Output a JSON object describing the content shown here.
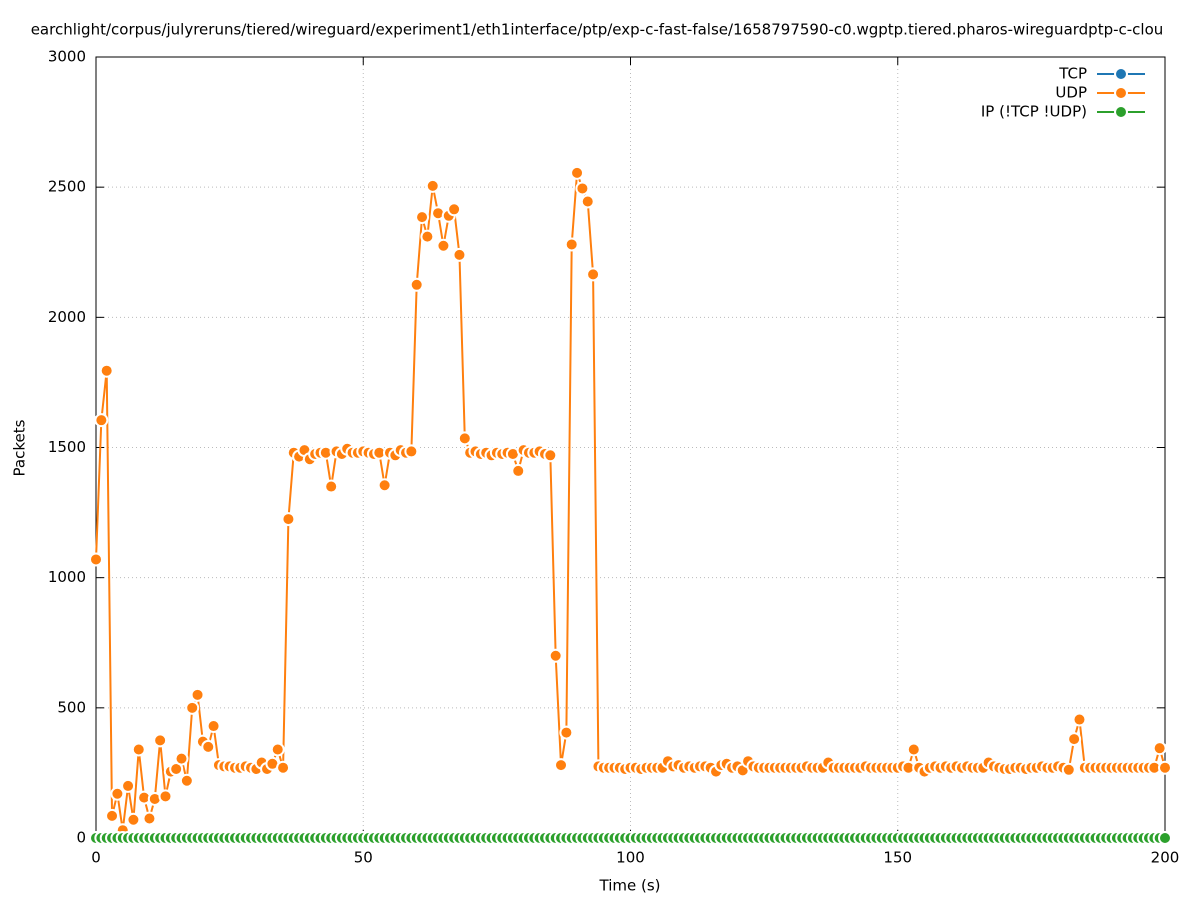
{
  "chart_data": {
    "type": "line",
    "title": "earchlight/corpus/julyreruns/tiered/wireguard/experiment1/eth1interface/ptp/exp-c-fast-false/1658797590-c0.wgptp.tiered.pharos-wireguardptp-c-clou",
    "xlabel": "Time (s)",
    "ylabel": "Packets",
    "x": [
      0,
      1,
      2,
      3,
      4,
      5,
      6,
      7,
      8,
      9,
      10,
      11,
      12,
      13,
      14,
      15,
      16,
      17,
      18,
      19,
      20,
      21,
      22,
      23,
      24,
      25,
      26,
      27,
      28,
      29,
      30,
      31,
      32,
      33,
      34,
      35,
      36,
      37,
      38,
      39,
      40,
      41,
      42,
      43,
      44,
      45,
      46,
      47,
      48,
      49,
      50,
      51,
      52,
      53,
      54,
      55,
      56,
      57,
      58,
      59,
      60,
      61,
      62,
      63,
      64,
      65,
      66,
      67,
      68,
      69,
      70,
      71,
      72,
      73,
      74,
      75,
      76,
      77,
      78,
      79,
      80,
      81,
      82,
      83,
      84,
      85,
      86,
      87,
      88,
      89,
      90,
      91,
      92,
      93,
      94,
      95,
      96,
      97,
      98,
      99,
      100,
      101,
      102,
      103,
      104,
      105,
      106,
      107,
      108,
      109,
      110,
      111,
      112,
      113,
      114,
      115,
      116,
      117,
      118,
      119,
      120,
      121,
      122,
      123,
      124,
      125,
      126,
      127,
      128,
      129,
      130,
      131,
      132,
      133,
      134,
      135,
      136,
      137,
      138,
      139,
      140,
      141,
      142,
      143,
      144,
      145,
      146,
      147,
      148,
      149,
      150,
      151,
      152,
      153,
      154,
      155,
      156,
      157,
      158,
      159,
      160,
      161,
      162,
      163,
      164,
      165,
      166,
      167,
      168,
      169,
      170,
      171,
      172,
      173,
      174,
      175,
      176,
      177,
      178,
      179,
      180,
      181,
      182,
      183,
      184,
      185,
      186,
      187,
      188,
      189,
      190,
      191,
      192,
      193,
      194,
      195,
      196,
      197,
      198,
      199,
      200
    ],
    "series": [
      {
        "name": "TCP",
        "color": "#1f77b4",
        "values": [
          0,
          0,
          0,
          0,
          0,
          0,
          0,
          0,
          0,
          0,
          0,
          0,
          0,
          0,
          0,
          0,
          0,
          0,
          0,
          0,
          0,
          0,
          0,
          0,
          0,
          0,
          0,
          0,
          0,
          0,
          0,
          0,
          0,
          0,
          0,
          0,
          0,
          0,
          0,
          0,
          0,
          0,
          0,
          0,
          0,
          0,
          0,
          0,
          0,
          0,
          0,
          0,
          0,
          0,
          0,
          0,
          0,
          0,
          0,
          0,
          0,
          0,
          0,
          0,
          0,
          0,
          0,
          0,
          0,
          0,
          0,
          0,
          0,
          0,
          0,
          0,
          0,
          0,
          0,
          0,
          0,
          0,
          0,
          0,
          0,
          0,
          0,
          0,
          0,
          0,
          0,
          0,
          0,
          0,
          0,
          0,
          0,
          0,
          0,
          0,
          0,
          0,
          0,
          0,
          0,
          0,
          0,
          0,
          0,
          0,
          0,
          0,
          0,
          0,
          0,
          0,
          0,
          0,
          0,
          0,
          0,
          0,
          0,
          0,
          0,
          0,
          0,
          0,
          0,
          0,
          0,
          0,
          0,
          0,
          0,
          0,
          0,
          0,
          0,
          0,
          0,
          0,
          0,
          0,
          0,
          0,
          0,
          0,
          0,
          0,
          0,
          0,
          0,
          0,
          0,
          0,
          0,
          0,
          0,
          0,
          0,
          0,
          0,
          0,
          0,
          0,
          0,
          0,
          0,
          0,
          0,
          0,
          0,
          0,
          0,
          0,
          0,
          0,
          0,
          0,
          0,
          0,
          0,
          0,
          0,
          0,
          0,
          0,
          0,
          0,
          0,
          0,
          0,
          0,
          0,
          0,
          0,
          0,
          0,
          0,
          0
        ]
      },
      {
        "name": "UDP",
        "color": "#ff7f0e",
        "values": [
          1070,
          1605,
          1795,
          85,
          170,
          30,
          200,
          70,
          340,
          155,
          75,
          150,
          375,
          160,
          255,
          265,
          305,
          220,
          500,
          550,
          370,
          350,
          430,
          280,
          275,
          275,
          270,
          270,
          275,
          270,
          265,
          290,
          265,
          285,
          340,
          270,
          1225,
          1480,
          1465,
          1490,
          1455,
          1475,
          1480,
          1480,
          1350,
          1485,
          1475,
          1495,
          1480,
          1480,
          1485,
          1480,
          1475,
          1480,
          1355,
          1480,
          1470,
          1490,
          1480,
          1485,
          2125,
          2385,
          2310,
          2505,
          2400,
          2275,
          2390,
          2415,
          2240,
          1535,
          1480,
          1485,
          1475,
          1480,
          1470,
          1480,
          1475,
          1480,
          1475,
          1410,
          1490,
          1480,
          1480,
          1485,
          1475,
          1470,
          700,
          280,
          405,
          2280,
          2555,
          2495,
          2445,
          2165,
          275,
          270,
          270,
          270,
          270,
          265,
          270,
          270,
          265,
          270,
          270,
          270,
          270,
          295,
          275,
          280,
          270,
          275,
          270,
          275,
          275,
          270,
          255,
          280,
          285,
          270,
          275,
          260,
          295,
          275,
          270,
          270,
          270,
          270,
          270,
          270,
          270,
          270,
          270,
          275,
          270,
          270,
          270,
          290,
          270,
          270,
          270,
          270,
          270,
          270,
          275,
          270,
          270,
          270,
          270,
          270,
          270,
          275,
          270,
          340,
          270,
          255,
          270,
          275,
          270,
          275,
          270,
          275,
          270,
          275,
          270,
          270,
          270,
          290,
          275,
          270,
          265,
          265,
          270,
          270,
          265,
          270,
          270,
          275,
          270,
          270,
          275,
          270,
          262,
          380,
          455,
          270,
          270,
          270,
          270,
          270,
          270,
          270,
          270,
          270,
          270,
          270,
          270,
          270,
          270,
          345,
          270
        ]
      },
      {
        "name": "IP (!TCP  !UDP)",
        "color": "#2ca02c",
        "values": [
          0,
          0,
          0,
          0,
          0,
          0,
          0,
          0,
          0,
          0,
          0,
          0,
          0,
          0,
          0,
          0,
          0,
          0,
          0,
          0,
          0,
          0,
          0,
          0,
          0,
          0,
          0,
          0,
          0,
          0,
          0,
          0,
          0,
          0,
          0,
          0,
          0,
          0,
          0,
          0,
          0,
          0,
          0,
          0,
          0,
          0,
          0,
          0,
          0,
          0,
          0,
          0,
          0,
          0,
          0,
          0,
          0,
          0,
          0,
          0,
          0,
          0,
          0,
          0,
          0,
          0,
          0,
          0,
          0,
          0,
          0,
          0,
          0,
          0,
          0,
          0,
          0,
          0,
          0,
          0,
          0,
          0,
          0,
          0,
          0,
          0,
          0,
          0,
          0,
          0,
          0,
          0,
          0,
          0,
          0,
          0,
          0,
          0,
          0,
          0,
          0,
          0,
          0,
          0,
          0,
          0,
          0,
          0,
          0,
          0,
          0,
          0,
          0,
          0,
          0,
          0,
          0,
          0,
          0,
          0,
          0,
          0,
          0,
          0,
          0,
          0,
          0,
          0,
          0,
          0,
          0,
          0,
          0,
          0,
          0,
          0,
          0,
          0,
          0,
          0,
          0,
          0,
          0,
          0,
          0,
          0,
          0,
          0,
          0,
          0,
          0,
          0,
          0,
          0,
          0,
          0,
          0,
          0,
          0,
          0,
          0,
          0,
          0,
          0,
          0,
          0,
          0,
          0,
          0,
          0,
          0,
          0,
          0,
          0,
          0,
          0,
          0,
          0,
          0,
          0,
          0,
          0,
          0,
          0,
          0,
          0,
          0,
          0,
          0,
          0,
          0,
          0,
          0,
          0,
          0,
          0,
          0,
          0,
          0,
          0,
          0
        ]
      }
    ],
    "xlim": [
      0,
      200
    ],
    "xticks": [
      0,
      50,
      100,
      150,
      200
    ],
    "ylim": [
      0,
      3000
    ],
    "yticks": [
      0,
      500,
      1000,
      1500,
      2000,
      2500,
      3000
    ],
    "grid": true,
    "legend": "upper right"
  }
}
